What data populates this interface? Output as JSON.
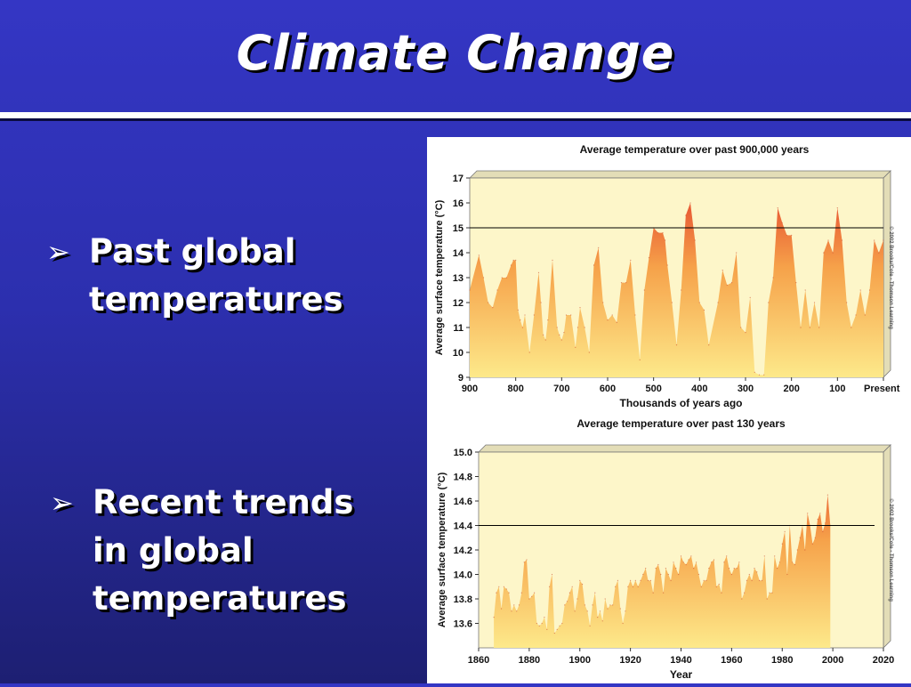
{
  "slide": {
    "title": "Climate Change",
    "bullet_marker": "➢",
    "bullets": [
      {
        "lines": [
          "Past global",
          "temperatures"
        ]
      },
      {
        "lines": [
          "Recent trends",
          "in global",
          "temperatures"
        ]
      }
    ]
  },
  "colors": {
    "background_top": "#3436c4",
    "background_bottom": "#1d1f72",
    "plot_background": "#fdf6c9",
    "fill_low": "#fde98a",
    "fill_mid": "#f6a24a",
    "fill_high": "#e23a2a",
    "reference_line": "#000000"
  },
  "chart_data": [
    {
      "type": "area",
      "title": "Average temperature over past 900,000 years",
      "xlabel": "Thousands of years ago",
      "ylabel": "Average surface temperature (°C)",
      "credit": "© 2002 Brooks/Cole - Thomson Learning",
      "xlim": [
        900,
        0
      ],
      "ylim": [
        9,
        17
      ],
      "x_ticks": [
        900,
        800,
        700,
        600,
        500,
        400,
        300,
        200,
        100,
        0
      ],
      "x_tick_labels": [
        "900",
        "800",
        "700",
        "600",
        "500",
        "400",
        "300",
        "200",
        "100",
        "Present"
      ],
      "y_ticks": [
        9,
        10,
        11,
        12,
        13,
        14,
        15,
        16,
        17
      ],
      "reference_line": 15,
      "x": [
        900,
        880,
        870,
        860,
        850,
        840,
        830,
        820,
        810,
        805,
        800,
        795,
        790,
        785,
        780,
        770,
        760,
        750,
        745,
        740,
        735,
        730,
        720,
        710,
        705,
        700,
        695,
        690,
        680,
        670,
        665,
        660,
        650,
        640,
        630,
        620,
        610,
        600,
        590,
        580,
        570,
        560,
        550,
        540,
        530,
        520,
        510,
        500,
        490,
        480,
        475,
        470,
        460,
        450,
        440,
        430,
        420,
        410,
        400,
        390,
        380,
        360,
        350,
        340,
        330,
        320,
        310,
        300,
        290,
        280,
        270,
        260,
        250,
        240,
        230,
        220,
        210,
        200,
        190,
        180,
        170,
        160,
        150,
        140,
        130,
        120,
        110,
        100,
        90,
        80,
        70,
        60,
        50,
        40,
        30,
        20,
        10,
        0
      ],
      "y": [
        12.5,
        13.9,
        13.0,
        12.0,
        11.8,
        12.5,
        13.0,
        13.0,
        13.5,
        13.7,
        13.7,
        11.7,
        11.3,
        11.0,
        11.5,
        10.0,
        11.5,
        13.2,
        12.0,
        10.7,
        10.5,
        11.3,
        13.7,
        11.0,
        10.7,
        10.5,
        10.8,
        11.5,
        11.5,
        10.2,
        11.0,
        11.8,
        11.0,
        10.0,
        13.5,
        14.2,
        12.0,
        11.3,
        11.5,
        11.2,
        12.8,
        12.8,
        13.7,
        11.5,
        9.7,
        12.5,
        13.8,
        15.0,
        14.8,
        14.8,
        14.5,
        13.5,
        12.0,
        10.3,
        12.5,
        15.5,
        16.0,
        14.5,
        12.0,
        11.7,
        10.3,
        12.0,
        13.3,
        12.7,
        12.8,
        14.0,
        11.0,
        10.8,
        12.2,
        9.2,
        9.1,
        9.1,
        12.0,
        13.0,
        15.8,
        15.2,
        14.7,
        14.7,
        12.8,
        11.0,
        12.5,
        11.0,
        12.0,
        11.0,
        14.0,
        14.5,
        14.0,
        15.8,
        14.5,
        12.0,
        11.0,
        11.5,
        12.5,
        11.5,
        12.5,
        14.5,
        14.0,
        14.5
      ]
    },
    {
      "type": "area",
      "title": "Average temperature over past 130 years",
      "xlabel": "Year",
      "ylabel": "Average surface temperature (°C)",
      "credit": "© 2002 Brooks/Cole - Thomson Learning",
      "xlim": [
        1860,
        2020
      ],
      "ylim": [
        13.4,
        15.0
      ],
      "x_ticks": [
        1860,
        1880,
        1900,
        1920,
        1940,
        1960,
        1980,
        2000,
        2020
      ],
      "y_ticks": [
        13.6,
        13.8,
        14.0,
        14.2,
        14.4,
        14.6,
        14.8,
        15.0
      ],
      "y_tick_labels": [
        "13.6",
        "13.8",
        "14.0",
        "14.2",
        "14.4",
        "14.6",
        "14.8",
        "15.0"
      ],
      "reference_line": 14.4,
      "x": [
        1866,
        1867,
        1868,
        1869,
        1870,
        1871,
        1872,
        1873,
        1874,
        1875,
        1876,
        1877,
        1878,
        1879,
        1880,
        1881,
        1882,
        1883,
        1884,
        1885,
        1886,
        1887,
        1888,
        1889,
        1890,
        1891,
        1892,
        1893,
        1894,
        1895,
        1896,
        1897,
        1898,
        1899,
        1900,
        1901,
        1902,
        1903,
        1904,
        1905,
        1906,
        1907,
        1908,
        1909,
        1910,
        1911,
        1912,
        1913,
        1914,
        1915,
        1916,
        1917,
        1918,
        1919,
        1920,
        1921,
        1922,
        1923,
        1924,
        1925,
        1926,
        1927,
        1928,
        1929,
        1930,
        1931,
        1932,
        1933,
        1934,
        1935,
        1936,
        1937,
        1938,
        1939,
        1940,
        1941,
        1942,
        1943,
        1944,
        1945,
        1946,
        1947,
        1948,
        1949,
        1950,
        1951,
        1952,
        1953,
        1954,
        1955,
        1956,
        1957,
        1958,
        1959,
        1960,
        1961,
        1962,
        1963,
        1964,
        1965,
        1966,
        1967,
        1968,
        1969,
        1970,
        1971,
        1972,
        1973,
        1974,
        1975,
        1976,
        1977,
        1978,
        1979,
        1980,
        1981,
        1982,
        1983,
        1984,
        1985,
        1986,
        1987,
        1988,
        1989,
        1990,
        1991,
        1992,
        1993,
        1994,
        1995,
        1996,
        1997,
        1998,
        1999
      ],
      "y": [
        13.65,
        13.85,
        13.9,
        13.72,
        13.9,
        13.88,
        13.85,
        13.7,
        13.75,
        13.7,
        13.75,
        13.85,
        14.1,
        14.12,
        13.8,
        13.82,
        13.85,
        13.6,
        13.58,
        13.6,
        13.65,
        13.55,
        13.9,
        14.0,
        13.52,
        13.55,
        13.58,
        13.6,
        13.75,
        13.78,
        13.85,
        13.9,
        13.7,
        13.8,
        13.95,
        13.92,
        13.75,
        13.7,
        13.58,
        13.75,
        13.85,
        13.65,
        13.7,
        13.62,
        13.8,
        13.72,
        13.75,
        13.75,
        13.9,
        13.95,
        13.72,
        13.6,
        13.7,
        13.9,
        13.95,
        13.9,
        13.95,
        13.9,
        13.95,
        14.0,
        14.05,
        13.95,
        13.95,
        13.85,
        14.05,
        14.08,
        14.0,
        13.85,
        14.05,
        14.0,
        13.95,
        14.1,
        14.05,
        14.0,
        14.15,
        14.1,
        14.08,
        14.12,
        14.15,
        14.05,
        14.1,
        14.0,
        13.9,
        13.95,
        13.95,
        14.05,
        14.1,
        14.12,
        13.9,
        13.92,
        13.85,
        14.1,
        14.15,
        14.05,
        14.0,
        14.05,
        14.05,
        14.1,
        13.8,
        13.85,
        13.95,
        14.0,
        13.95,
        14.05,
        14.02,
        13.95,
        13.95,
        14.15,
        13.8,
        13.85,
        13.85,
        14.15,
        14.05,
        14.1,
        14.25,
        14.35,
        14.0,
        14.4,
        14.1,
        14.08,
        14.2,
        14.3,
        14.4,
        14.2,
        14.5,
        14.4,
        14.25,
        14.3,
        14.45,
        14.5,
        14.35,
        14.42,
        14.65,
        14.4
      ]
    }
  ]
}
